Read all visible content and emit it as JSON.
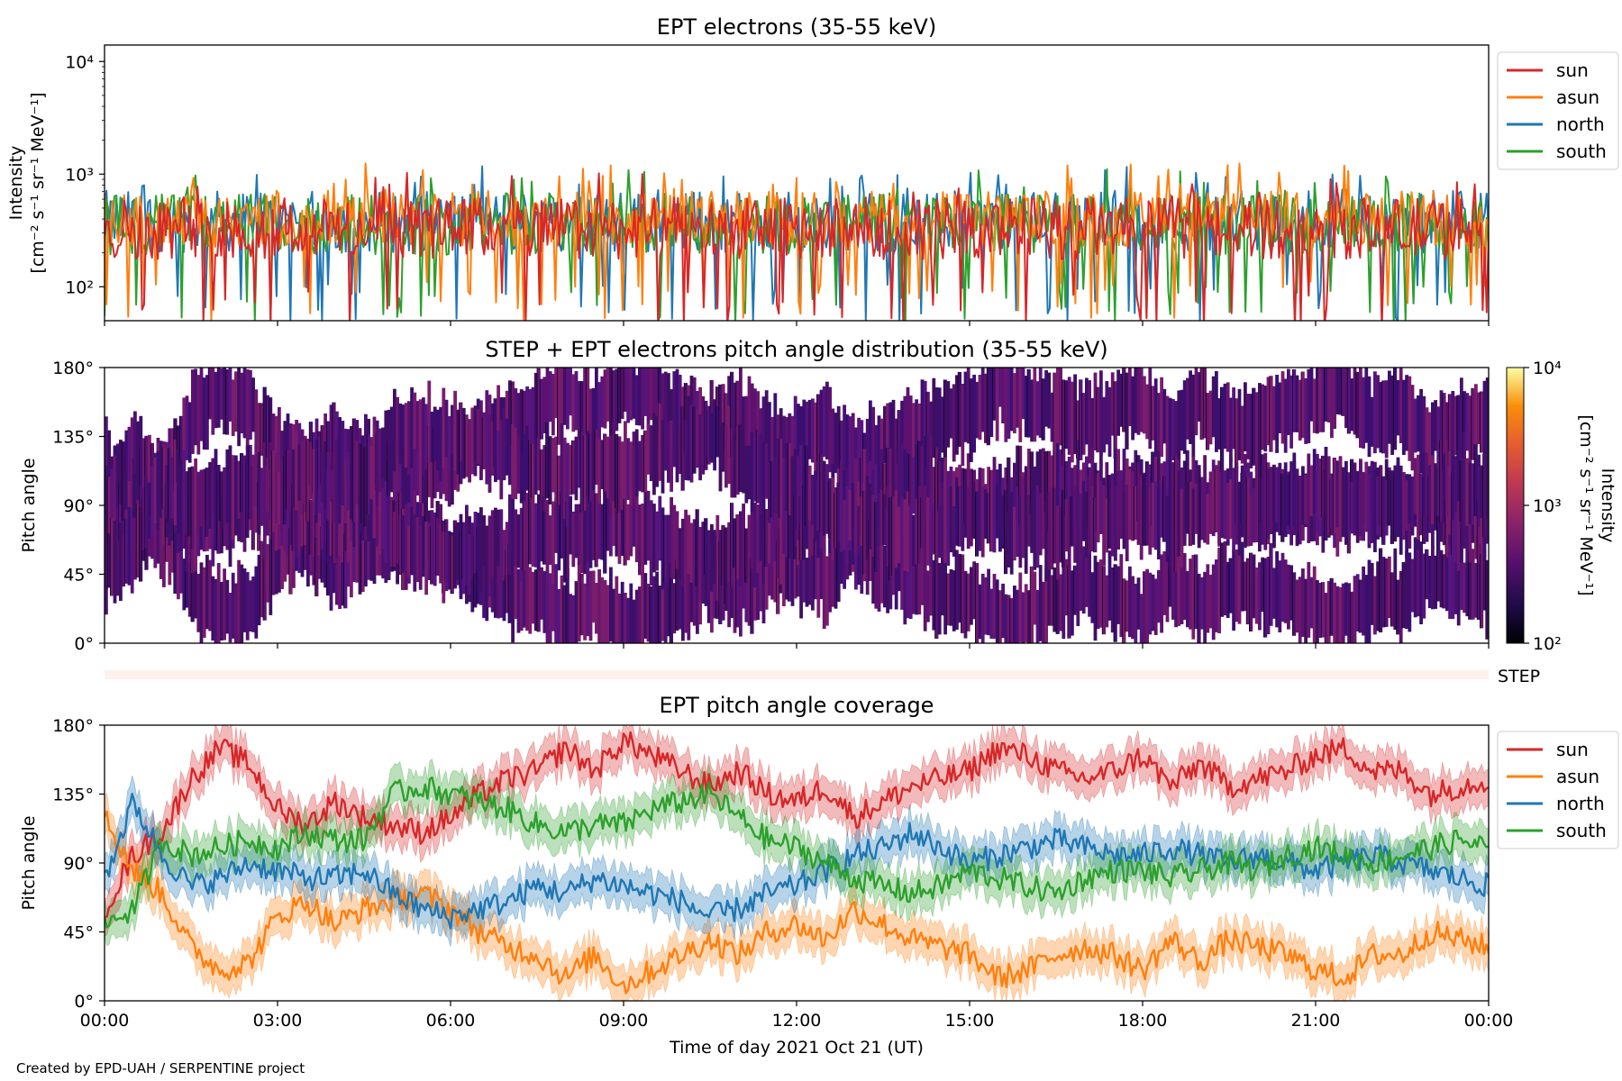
{
  "chart_data": [
    {
      "type": "line",
      "title": "EPT electrons (35-55 keV)",
      "ylabel_line1": "Intensity",
      "ylabel_line2": "[cm⁻² s⁻¹ sr⁻¹ MeV⁻¹]",
      "yscale": "log",
      "ylim": [
        50,
        14000
      ],
      "yticks": [
        "10²",
        "10³",
        "10⁴"
      ],
      "ytick_values": [
        100,
        1000,
        10000
      ],
      "xlim": [
        "00:00",
        "24:00"
      ],
      "legend_position": "outside-right",
      "series": [
        {
          "name": "north",
          "color": "#1f77b4",
          "baseline": 380,
          "spread": 0.55
        },
        {
          "name": "south",
          "color": "#2ca02c",
          "baseline": 360,
          "spread": 0.55
        },
        {
          "name": "asun",
          "color": "#ff7f0e",
          "baseline": 400,
          "spread": 0.5
        },
        {
          "name": "sun",
          "color": "#d62728",
          "baseline": 330,
          "spread": 0.55
        }
      ],
      "legend_order": [
        "sun",
        "asun",
        "north",
        "south"
      ]
    },
    {
      "type": "heatmap",
      "title": "STEP + EPT electrons pitch angle distribution (35-55 keV)",
      "ylabel": "Pitch angle",
      "ylim": [
        0,
        180
      ],
      "yticks": [
        "0°",
        "45°",
        "90°",
        "135°",
        "180°"
      ],
      "ytick_values": [
        0,
        45,
        90,
        135,
        180
      ],
      "colorbar": {
        "label_line1": "Intensity",
        "label_line2": "[cm⁻² s⁻¹ sr⁻¹ MeV⁻¹]",
        "scale": "log",
        "range": [
          100,
          10000
        ],
        "ticks": [
          "10²",
          "10³",
          "10⁴"
        ],
        "colormap": "inferno"
      },
      "step_label": "STEP"
    },
    {
      "type": "line",
      "title": "EPT pitch angle coverage",
      "ylabel": "Pitch angle",
      "xlabel": "Time of day 2021 Oct 21 (UT)",
      "ylim": [
        0,
        180
      ],
      "yticks": [
        "0°",
        "45°",
        "90°",
        "135°",
        "180°"
      ],
      "ytick_values": [
        0,
        45,
        90,
        135,
        180
      ],
      "xticks": [
        "00:00",
        "03:00",
        "06:00",
        "09:00",
        "12:00",
        "15:00",
        "18:00",
        "21:00",
        "00:00"
      ],
      "legend_position": "outside-right",
      "shaded_band_halfwidth_deg": 12,
      "series": [
        {
          "name": "sun",
          "color": "#d62728",
          "x_hours": [
            0,
            0.5,
            1,
            1.5,
            2,
            2.5,
            3,
            3.5,
            4,
            4.5,
            5,
            5.5,
            6,
            6.5,
            7,
            7.5,
            8,
            8.5,
            9,
            9.5,
            10,
            10.5,
            11,
            11.5,
            12,
            12.5,
            13,
            13.5,
            14,
            14.5,
            15,
            15.5,
            16,
            16.5,
            17,
            17.5,
            18,
            18.5,
            19,
            19.5,
            20,
            20.5,
            21,
            21.5,
            22,
            22.5,
            23,
            23.5,
            24
          ],
          "values": [
            60,
            95,
            110,
            145,
            165,
            155,
            125,
            115,
            130,
            120,
            115,
            110,
            120,
            135,
            145,
            150,
            165,
            150,
            170,
            160,
            150,
            140,
            150,
            135,
            130,
            140,
            120,
            130,
            140,
            145,
            150,
            165,
            160,
            150,
            145,
            150,
            160,
            140,
            155,
            140,
            145,
            150,
            160,
            165,
            150,
            150,
            135,
            140,
            145
          ]
        },
        {
          "name": "asun",
          "color": "#ff7f0e",
          "x_hours": [
            0,
            0.5,
            1,
            1.5,
            2,
            2.5,
            3,
            3.5,
            4,
            4.5,
            5,
            5.5,
            6,
            6.5,
            7,
            7.5,
            8,
            8.5,
            9,
            9.5,
            10,
            10.5,
            11,
            11.5,
            12,
            12.5,
            13,
            13.5,
            14,
            14.5,
            15,
            15.5,
            16,
            16.5,
            17,
            17.5,
            18,
            18.5,
            19,
            19.5,
            20,
            20.5,
            21,
            21.5,
            22,
            22.5,
            23,
            23.5,
            24
          ],
          "values": [
            120,
            85,
            70,
            35,
            20,
            25,
            55,
            65,
            50,
            60,
            65,
            70,
            60,
            45,
            35,
            30,
            15,
            30,
            10,
            20,
            30,
            40,
            30,
            45,
            50,
            40,
            60,
            50,
            40,
            35,
            30,
            15,
            20,
            30,
            35,
            30,
            20,
            40,
            25,
            40,
            35,
            30,
            20,
            15,
            30,
            30,
            45,
            40,
            35
          ]
        },
        {
          "name": "north",
          "color": "#1f77b4",
          "x_hours": [
            0,
            0.5,
            1,
            1.5,
            2,
            2.5,
            3,
            3.5,
            4,
            4.5,
            5,
            5.5,
            6,
            6.5,
            7,
            7.5,
            8,
            8.5,
            9,
            9.5,
            10,
            10.5,
            11,
            11.5,
            12,
            12.5,
            13,
            13.5,
            14,
            14.5,
            15,
            15.5,
            16,
            16.5,
            17,
            17.5,
            18,
            18.5,
            19,
            19.5,
            20,
            20.5,
            21,
            21.5,
            22,
            22.5,
            23,
            23.5,
            24
          ],
          "values": [
            80,
            130,
            95,
            75,
            80,
            90,
            85,
            80,
            80,
            85,
            70,
            60,
            55,
            60,
            65,
            75,
            70,
            80,
            75,
            70,
            65,
            55,
            60,
            70,
            75,
            85,
            95,
            100,
            110,
            100,
            90,
            95,
            100,
            105,
            100,
            95,
            95,
            100,
            95,
            90,
            95,
            90,
            85,
            90,
            95,
            90,
            85,
            80,
            75
          ]
        },
        {
          "name": "south",
          "color": "#2ca02c",
          "x_hours": [
            0,
            0.5,
            1,
            1.5,
            2,
            2.5,
            3,
            3.5,
            4,
            4.5,
            5,
            5.5,
            6,
            6.5,
            7,
            7.5,
            8,
            8.5,
            9,
            9.5,
            10,
            10.5,
            11,
            11.5,
            12,
            12.5,
            13,
            13.5,
            14,
            14.5,
            15,
            15.5,
            16,
            16.5,
            17,
            17.5,
            18,
            18.5,
            19,
            19.5,
            20,
            20.5,
            21,
            21.5,
            22,
            22.5,
            23,
            23.5,
            24
          ],
          "values": [
            50,
            60,
            105,
            95,
            100,
            105,
            100,
            110,
            105,
            105,
            135,
            140,
            135,
            130,
            125,
            115,
            110,
            115,
            115,
            125,
            130,
            135,
            120,
            105,
            100,
            90,
            80,
            75,
            70,
            75,
            85,
            80,
            75,
            70,
            80,
            85,
            85,
            80,
            85,
            90,
            85,
            95,
            100,
            95,
            90,
            95,
            100,
            105,
            100
          ]
        }
      ],
      "legend_order": [
        "sun",
        "asun",
        "north",
        "south"
      ]
    }
  ],
  "footer": {
    "credit": "Created by EPD-UAH / SERPENTINE project"
  }
}
